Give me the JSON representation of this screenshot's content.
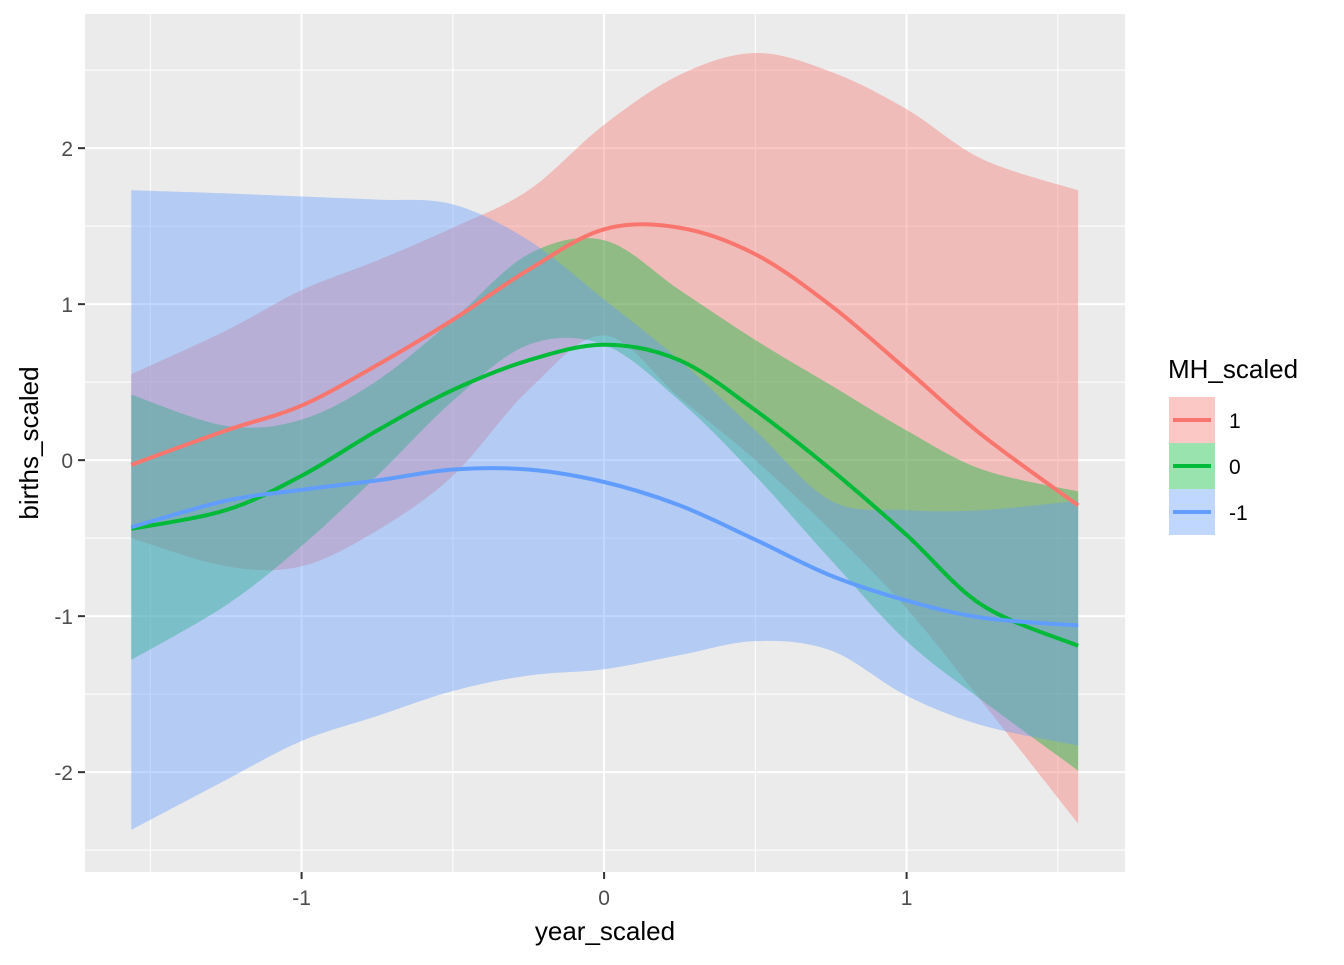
{
  "chart_data": {
    "type": "area",
    "title": "",
    "xlabel": "year_scaled",
    "ylabel": "births_scaled",
    "xlim": [
      -1.716,
      1.722
    ],
    "ylim": [
      -2.64,
      2.86
    ],
    "x_ticks": [
      -1,
      0,
      1
    ],
    "y_ticks": [
      -2,
      -1,
      0,
      1,
      2
    ],
    "grid": true,
    "legend": {
      "title": "MH_scaled",
      "placement": "right"
    },
    "x": [
      -1.563,
      -1.25,
      -1,
      -0.75,
      -0.5,
      -0.25,
      0,
      0.25,
      0.5,
      0.75,
      1,
      1.25,
      1.567
    ],
    "series": [
      {
        "name": "1",
        "color": "#F8766D",
        "fit": [
          -0.03,
          0.19,
          0.35,
          0.61,
          0.9,
          1.22,
          1.48,
          1.49,
          1.32,
          0.99,
          0.58,
          0.16,
          -0.29
        ],
        "upper": [
          0.55,
          0.83,
          1.09,
          1.28,
          1.49,
          1.73,
          2.15,
          2.47,
          2.61,
          2.49,
          2.25,
          1.93,
          1.73
        ],
        "lower": [
          -0.5,
          -0.68,
          -0.68,
          -0.45,
          -0.1,
          0.45,
          0.8,
          0.4,
          0.0,
          -0.45,
          -0.95,
          -1.55,
          -2.33
        ]
      },
      {
        "name": "0",
        "color": "#00BA38",
        "fit": [
          -0.44,
          -0.32,
          -0.1,
          0.19,
          0.45,
          0.64,
          0.74,
          0.64,
          0.32,
          -0.06,
          -0.48,
          -0.93,
          -1.19
        ],
        "upper": [
          0.42,
          0.22,
          0.26,
          0.51,
          0.9,
          1.32,
          1.41,
          1.09,
          0.77,
          0.48,
          0.19,
          -0.06,
          -0.2
        ],
        "lower": [
          -1.28,
          -0.93,
          -0.55,
          -0.1,
          0.38,
          0.74,
          0.74,
          0.38,
          -0.1,
          -0.64,
          -1.16,
          -1.54,
          -1.99
        ]
      },
      {
        "name": "-1",
        "color": "#619CFF",
        "fit": [
          -0.43,
          -0.26,
          -0.19,
          -0.13,
          -0.06,
          -0.06,
          -0.14,
          -0.29,
          -0.51,
          -0.74,
          -0.9,
          -1.01,
          -1.06
        ],
        "upper": [
          1.73,
          1.71,
          1.69,
          1.67,
          1.64,
          1.41,
          1.03,
          0.64,
          0.19,
          -0.26,
          -0.32,
          -0.32,
          -0.26
        ],
        "lower": [
          -2.37,
          -2.05,
          -1.8,
          -1.64,
          -1.48,
          -1.38,
          -1.34,
          -1.25,
          -1.16,
          -1.22,
          -1.51,
          -1.7,
          -1.83
        ]
      }
    ]
  }
}
